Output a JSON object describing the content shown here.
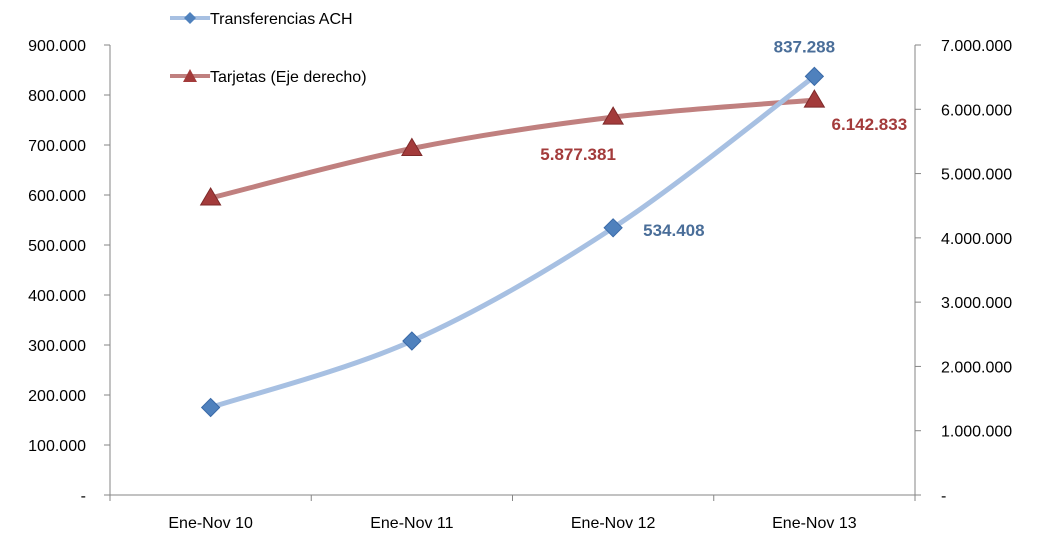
{
  "chart_data": {
    "type": "line",
    "categories": [
      "Ene-Nov 10",
      "Ene-Nov 11",
      "Ene-Nov 12",
      "Ene-Nov 13"
    ],
    "series": [
      {
        "name": "Transferencias ACH",
        "axis": "left",
        "color": "#4F81BD",
        "line_color": "#A7C0E2",
        "marker": "diamond",
        "values": [
          175000,
          308000,
          534408,
          837288
        ],
        "data_labels": [
          "",
          "",
          "534.408",
          "837.288"
        ]
      },
      {
        "name": "Tarjetas (Eje derecho)",
        "axis": "right",
        "color": "#A33B3B",
        "line_color": "#C0807F",
        "marker": "triangle",
        "values": [
          4620000,
          5390000,
          5877381,
          6142833
        ],
        "data_labels": [
          "",
          "",
          "5.877.381",
          "6.142.833"
        ]
      }
    ],
    "y_left": {
      "ylim": [
        0,
        900000
      ],
      "tick_labels": [
        "-",
        "100.000",
        "200.000",
        "300.000",
        "400.000",
        "500.000",
        "600.000",
        "700.000",
        "800.000",
        "900.000"
      ]
    },
    "y_right": {
      "ylim": [
        0,
        7000000
      ],
      "tick_labels": [
        "-",
        "1.000.000",
        "2.000.000",
        "3.000.000",
        "4.000.000",
        "5.000.000",
        "6.000.000",
        "7.000.000"
      ]
    },
    "grid": false,
    "legend_position": "top-left"
  }
}
